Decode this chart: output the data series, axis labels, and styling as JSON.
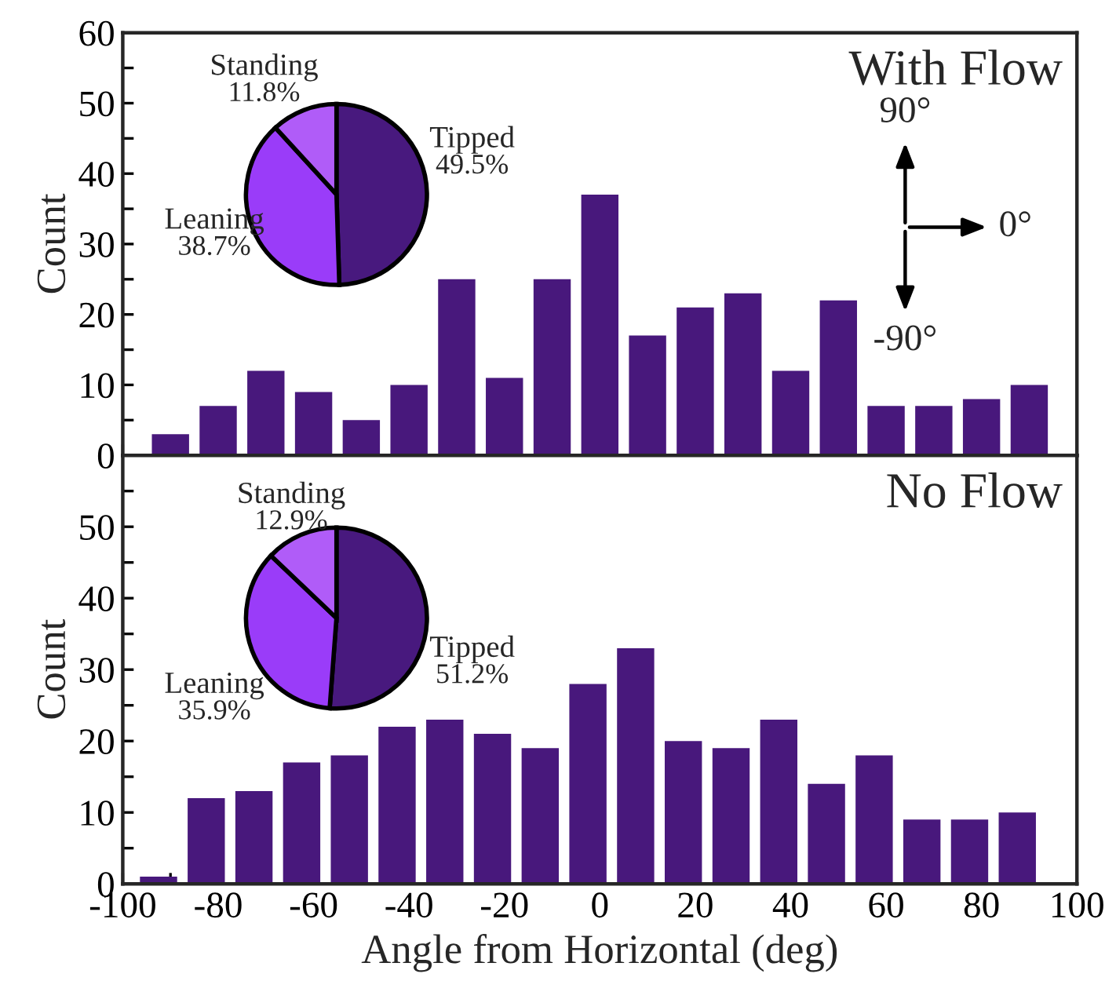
{
  "chart_data": [
    {
      "type": "bar",
      "title": "With Flow",
      "ylabel": "Count",
      "x": [
        -90,
        -80,
        -70,
        -60,
        -50,
        -40,
        -30,
        -20,
        -10,
        0,
        10,
        20,
        30,
        40,
        50,
        60,
        70,
        80,
        90
      ],
      "values": [
        3,
        7,
        12,
        9,
        5,
        10,
        25,
        11,
        25,
        37,
        17,
        21,
        23,
        12,
        22,
        7,
        7,
        8,
        10
      ],
      "color": "#48187c",
      "xlim": [
        -100,
        100
      ],
      "xticks": [
        -100,
        {
          "value": -90,
          "label": null
        },
        -80,
        {
          "value": -70,
          "label": null
        },
        -60,
        {
          "value": -50,
          "label": null
        },
        -40,
        {
          "value": -30,
          "label": null
        },
        -20,
        {
          "value": -10,
          "label": null
        },
        0,
        {
          "value": 10,
          "label": null
        },
        20,
        {
          "value": 30,
          "label": null
        },
        40,
        {
          "value": 50,
          "label": null
        },
        60,
        {
          "value": 70,
          "label": null
        },
        80,
        {
          "value": 90,
          "label": null
        },
        100
      ],
      "ylim": [
        0,
        60
      ],
      "yticks": [
        0,
        {
          "value": 5,
          "label": null
        },
        10,
        {
          "value": 15,
          "label": null
        },
        20,
        {
          "value": 25,
          "label": null
        },
        30,
        {
          "value": 35,
          "label": null
        },
        40,
        {
          "value": 45,
          "label": null
        },
        50,
        {
          "value": 55,
          "label": null
        },
        60
      ],
      "tick_labels": "y",
      "grid": false,
      "legend": false,
      "annotations": [
        "90°",
        "0°",
        "-90°"
      ]
    },
    {
      "type": "pie",
      "categories": [
        "Tipped",
        "Leaning",
        "Standing"
      ],
      "values": [
        49.5,
        38.7,
        11.8
      ],
      "value_labels": [
        "49.5%",
        "38.7%",
        "11.8%"
      ],
      "colors": [
        "#48197e",
        "#9a3cf9",
        "#b05cf8"
      ]
    },
    {
      "type": "bar",
      "title": "No Flow",
      "ylabel": "Count",
      "xlabel": "Angle from Horizontal (deg)",
      "x": [
        -92.5,
        -82.5,
        -72.5,
        -62.5,
        -52.5,
        -42.5,
        -32.5,
        -22.5,
        -12.5,
        -2.5,
        7.5,
        17.5,
        27.5,
        37.5,
        47.5,
        57.5,
        67.5,
        77.5,
        87.5
      ],
      "values": [
        1,
        12,
        13,
        17,
        18,
        22,
        23,
        21,
        19,
        28,
        33,
        20,
        19,
        23,
        14,
        18,
        9,
        9,
        10
      ],
      "color": "#48187c",
      "xlim": [
        -100,
        100
      ],
      "xticks": [
        -100,
        {
          "value": -90,
          "label": null
        },
        -80,
        {
          "value": -70,
          "label": null
        },
        -60,
        {
          "value": -50,
          "label": null
        },
        -40,
        {
          "value": -30,
          "label": null
        },
        -20,
        {
          "value": -10,
          "label": null
        },
        0,
        {
          "value": 10,
          "label": null
        },
        20,
        {
          "value": 30,
          "label": null
        },
        40,
        {
          "value": 50,
          "label": null
        },
        60,
        {
          "value": 70,
          "label": null
        },
        80,
        {
          "value": 90,
          "label": null
        },
        100
      ],
      "ylim": [
        0,
        60
      ],
      "yticks": [
        0,
        {
          "value": 5,
          "label": null
        },
        10,
        {
          "value": 15,
          "label": null
        },
        20,
        {
          "value": 25,
          "label": null
        },
        30,
        {
          "value": 35,
          "label": null
        },
        40,
        {
          "value": 45,
          "label": null
        },
        50,
        {
          "value": 55,
          "label": null
        },
        {
          "value": 60,
          "label": null
        }
      ],
      "grid": false,
      "legend": false
    },
    {
      "type": "pie",
      "categories": [
        "Tipped",
        "Leaning",
        "Standing"
      ],
      "values": [
        51.2,
        35.9,
        12.9
      ],
      "value_labels": [
        "51.2%",
        "35.9%",
        "12.9%"
      ],
      "colors": [
        "#48197e",
        "#9a3cf9",
        "#b05cf8"
      ]
    }
  ]
}
